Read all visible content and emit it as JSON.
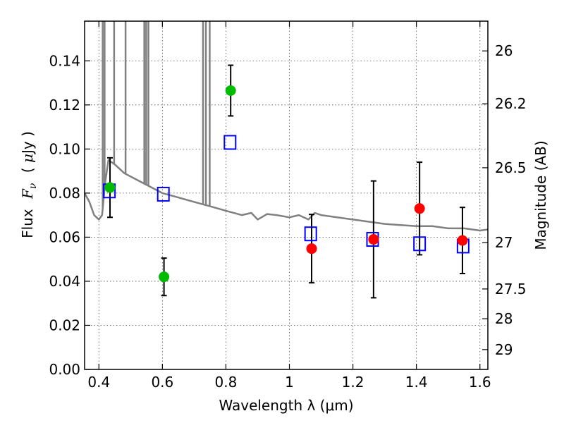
{
  "chart_data": {
    "type": "scatter",
    "xlabel": "Wavelength  λ (μm)",
    "ylabel": "Flux  F_ν  ( μJy )",
    "y2label": "Magnitude (AB)",
    "xlim": [
      0.355,
      1.625
    ],
    "ylim": [
      0.0,
      0.158
    ],
    "grid": true,
    "x_ticks": [
      0.4,
      0.6,
      0.8,
      1.0,
      1.2,
      1.4,
      1.6
    ],
    "x_tick_labels": [
      "0.4",
      "0.6",
      "0.8",
      "1",
      "1.2",
      "1.4",
      "1.6"
    ],
    "y_ticks": [
      0.0,
      0.02,
      0.04,
      0.06,
      0.08,
      0.1,
      0.12,
      0.14
    ],
    "y_tick_labels": [
      "0.00",
      "0.02",
      "0.04",
      "0.06",
      "0.08",
      "0.10",
      "0.12",
      "0.14"
    ],
    "y2_ticks": [
      {
        "flux": 0.1445,
        "label": "26"
      },
      {
        "flux": 0.1205,
        "label": "26.2"
      },
      {
        "flux": 0.0915,
        "label": "26.5"
      },
      {
        "flux": 0.0575,
        "label": "27"
      },
      {
        "flux": 0.0365,
        "label": "27.5"
      },
      {
        "flux": 0.023,
        "label": "28"
      },
      {
        "flux": 0.009,
        "label": "29"
      }
    ],
    "series": [
      {
        "name": "model spectrum",
        "kind": "line",
        "color": "#808080",
        "x": [
          0.355,
          0.37,
          0.385,
          0.4,
          0.41,
          0.42,
          0.43,
          0.45,
          0.48,
          0.52,
          0.56,
          0.6,
          0.65,
          0.7,
          0.75,
          0.8,
          0.85,
          0.88,
          0.9,
          0.93,
          0.96,
          1.0,
          1.03,
          1.06,
          1.08,
          1.1,
          1.15,
          1.2,
          1.25,
          1.3,
          1.35,
          1.4,
          1.45,
          1.5,
          1.55,
          1.6,
          1.625
        ],
        "y": [
          0.08,
          0.076,
          0.07,
          0.068,
          0.07,
          0.085,
          0.095,
          0.093,
          0.089,
          0.086,
          0.083,
          0.08,
          0.078,
          0.076,
          0.074,
          0.072,
          0.07,
          0.071,
          0.068,
          0.0705,
          0.07,
          0.069,
          0.07,
          0.068,
          0.071,
          0.07,
          0.069,
          0.068,
          0.067,
          0.066,
          0.0655,
          0.065,
          0.065,
          0.064,
          0.064,
          0.063,
          0.0635
        ]
      },
      {
        "name": "spectrum emission spikes",
        "kind": "spikes",
        "color": "#808080",
        "x": [
          0.412,
          0.418,
          0.448,
          0.484,
          0.543,
          0.549,
          0.556,
          0.728,
          0.737,
          0.749
        ],
        "y": [
          0.158,
          0.158,
          0.158,
          0.158,
          0.158,
          0.158,
          0.158,
          0.158,
          0.158,
          0.158
        ]
      },
      {
        "name": "green photometry",
        "kind": "points",
        "color": "#00bb00",
        "x": [
          0.435,
          0.605,
          0.815
        ],
        "y": [
          0.0825,
          0.042,
          0.1265
        ],
        "err": [
          0.0135,
          0.0085,
          0.0115
        ]
      },
      {
        "name": "red photometry",
        "kind": "points",
        "color": "#ff0000",
        "x": [
          1.07,
          1.265,
          1.41,
          1.545
        ],
        "y": [
          0.0548,
          0.059,
          0.073,
          0.0585
        ],
        "err": [
          0.0155,
          0.0265,
          0.021,
          0.015
        ]
      },
      {
        "name": "model photometry",
        "kind": "open-squares",
        "color": "#0000ff",
        "x": [
          0.433,
          0.603,
          0.813,
          1.067,
          1.262,
          1.41,
          1.547
        ],
        "y": [
          0.081,
          0.0795,
          0.103,
          0.0615,
          0.059,
          0.057,
          0.056
        ]
      }
    ]
  }
}
